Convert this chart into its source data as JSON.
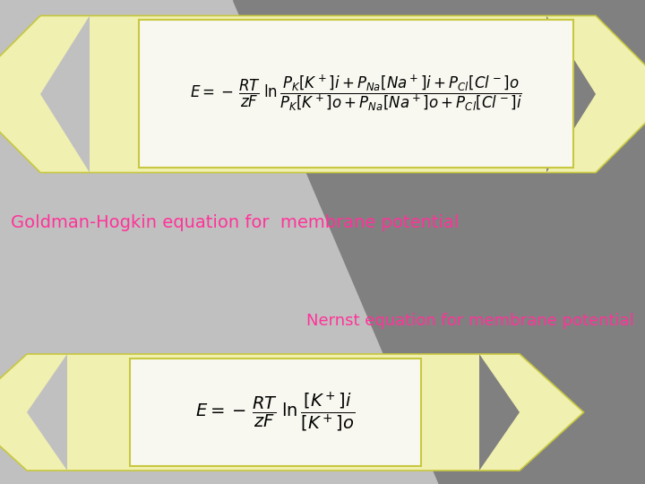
{
  "bg_light_gray": "#c0c0c0",
  "bg_dark_gray": "#808080",
  "banner_yellow": "#f0f0b0",
  "banner_border": "#c8c840",
  "eq_box_white": "#f8f8f0",
  "eq_box_border": "#c8c840",
  "text_pink": "#ff3399",
  "goldman_label": "Goldman-Hogkin equation for  membrane potential",
  "nernst_label": "Nernst equation for membrane potential",
  "fig_width": 7.2,
  "fig_height": 5.4,
  "dpi": 100
}
